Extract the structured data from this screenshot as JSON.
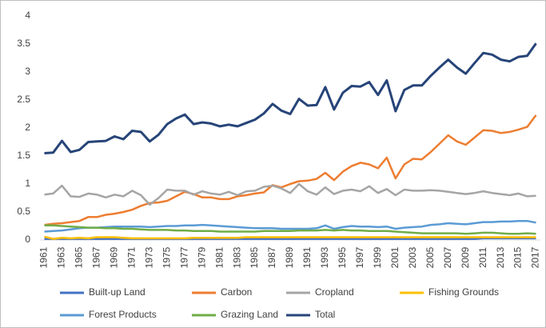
{
  "chart_data": {
    "type": "line",
    "categories": [
      "1961",
      null,
      "1963",
      null,
      "1965",
      null,
      "1967",
      null,
      "1969",
      null,
      "1971",
      null,
      "1973",
      null,
      "1975",
      null,
      "1977",
      null,
      "1979",
      null,
      "1981",
      null,
      "1983",
      null,
      "1985",
      null,
      "1987",
      null,
      "1989",
      null,
      "1991",
      null,
      "1993",
      null,
      "1995",
      null,
      "1997",
      null,
      "1999",
      null,
      "2001",
      null,
      "2003",
      null,
      "2005",
      null,
      "2007",
      null,
      "2009",
      null,
      "2011",
      null,
      "2013",
      null,
      "2015",
      null,
      "2017"
    ],
    "ylim": [
      0,
      4
    ],
    "yticks": [
      0,
      0.5,
      1,
      1.5,
      2,
      2.5,
      3,
      3.5,
      4
    ],
    "grid": false,
    "legend": "bottom",
    "series": [
      {
        "name": "Built-up Land",
        "color": "#4472c4",
        "values": [
          0.02,
          0.02,
          0.02,
          0.02,
          0.02,
          0.02,
          0.02,
          0.02,
          0.02,
          0.02,
          0.02,
          0.02,
          0.02,
          0.02,
          0.02,
          0.02,
          0.02,
          0.02,
          0.02,
          0.02,
          0.02,
          0.02,
          0.02,
          0.02,
          0.02,
          0.02,
          0.02,
          0.02,
          0.02,
          0.02,
          0.02,
          0.02,
          0.02,
          0.02,
          0.02,
          0.02,
          0.02,
          0.02,
          0.02,
          0.02,
          0.02,
          0.02,
          0.02,
          0.02,
          0.02,
          0.02,
          0.02,
          0.02,
          0.02,
          0.02,
          0.03,
          0.03,
          0.03,
          0.03,
          0.03,
          0.03,
          0.03
        ]
      },
      {
        "name": "Carbon",
        "color": "#ed7d31",
        "values": [
          0.27,
          0.29,
          0.3,
          0.32,
          0.34,
          0.41,
          0.41,
          0.45,
          0.47,
          0.5,
          0.54,
          0.61,
          0.66,
          0.67,
          0.7,
          0.78,
          0.86,
          0.82,
          0.76,
          0.76,
          0.73,
          0.73,
          0.78,
          0.8,
          0.83,
          0.85,
          0.98,
          0.94,
          1.0,
          1.05,
          1.06,
          1.09,
          1.2,
          1.07,
          1.22,
          1.32,
          1.38,
          1.35,
          1.28,
          1.47,
          1.1,
          1.35,
          1.45,
          1.44,
          1.57,
          1.72,
          1.87,
          1.76,
          1.7,
          1.83,
          1.96,
          1.95,
          1.91,
          1.93,
          1.97,
          2.02,
          2.23
        ]
      },
      {
        "name": "Cropland",
        "color": "#a5a5a5",
        "values": [
          0.81,
          0.83,
          0.97,
          0.78,
          0.77,
          0.83,
          0.81,
          0.76,
          0.81,
          0.78,
          0.88,
          0.8,
          0.63,
          0.75,
          0.9,
          0.88,
          0.88,
          0.81,
          0.87,
          0.83,
          0.81,
          0.86,
          0.8,
          0.87,
          0.88,
          0.95,
          0.97,
          0.92,
          0.84,
          1.0,
          0.87,
          0.81,
          0.94,
          0.82,
          0.88,
          0.9,
          0.87,
          0.96,
          0.84,
          0.91,
          0.8,
          0.9,
          0.88,
          0.88,
          0.89,
          0.88,
          0.86,
          0.84,
          0.82,
          0.84,
          0.87,
          0.84,
          0.82,
          0.8,
          0.83,
          0.78,
          0.79
        ]
      },
      {
        "name": "Fishing Grounds",
        "color": "#ffc000",
        "values": [
          0.06,
          0.02,
          0.04,
          0.03,
          0.04,
          0.03,
          0.05,
          0.05,
          0.05,
          0.04,
          0.03,
          0.03,
          0.03,
          0.03,
          0.03,
          0.03,
          0.03,
          0.04,
          0.04,
          0.04,
          0.04,
          0.04,
          0.04,
          0.05,
          0.05,
          0.05,
          0.05,
          0.05,
          0.05,
          0.05,
          0.05,
          0.05,
          0.05,
          0.05,
          0.05,
          0.05,
          0.05,
          0.05,
          0.05,
          0.05,
          0.05,
          0.05,
          0.05,
          0.05,
          0.05,
          0.05,
          0.05,
          0.05,
          0.05,
          0.05,
          0.05,
          0.05,
          0.05,
          0.05,
          0.05,
          0.05,
          0.05
        ]
      },
      {
        "name": "Forest Products",
        "color": "#5b9bd5",
        "values": [
          0.15,
          0.16,
          0.17,
          0.19,
          0.21,
          0.22,
          0.22,
          0.23,
          0.24,
          0.24,
          0.24,
          0.24,
          0.23,
          0.24,
          0.25,
          0.25,
          0.26,
          0.26,
          0.27,
          0.26,
          0.25,
          0.24,
          0.23,
          0.22,
          0.21,
          0.21,
          0.21,
          0.2,
          0.2,
          0.2,
          0.2,
          0.21,
          0.26,
          0.2,
          0.23,
          0.25,
          0.24,
          0.24,
          0.23,
          0.24,
          0.2,
          0.22,
          0.23,
          0.24,
          0.27,
          0.28,
          0.3,
          0.29,
          0.28,
          0.3,
          0.32,
          0.32,
          0.33,
          0.33,
          0.34,
          0.34,
          0.31
        ]
      },
      {
        "name": "Grazing Land",
        "color": "#70ad47",
        "values": [
          0.26,
          0.26,
          0.25,
          0.24,
          0.23,
          0.22,
          0.22,
          0.21,
          0.21,
          0.2,
          0.2,
          0.19,
          0.18,
          0.18,
          0.18,
          0.17,
          0.17,
          0.16,
          0.16,
          0.16,
          0.15,
          0.15,
          0.15,
          0.15,
          0.15,
          0.16,
          0.16,
          0.16,
          0.16,
          0.17,
          0.17,
          0.17,
          0.18,
          0.17,
          0.18,
          0.17,
          0.17,
          0.16,
          0.16,
          0.16,
          0.15,
          0.14,
          0.13,
          0.12,
          0.12,
          0.12,
          0.12,
          0.12,
          0.11,
          0.12,
          0.13,
          0.13,
          0.12,
          0.11,
          0.11,
          0.12,
          0.11
        ]
      },
      {
        "name": "Total",
        "color": "#264478",
        "values": [
          1.55,
          1.56,
          1.77,
          1.57,
          1.61,
          1.75,
          1.76,
          1.77,
          1.85,
          1.8,
          1.95,
          1.93,
          1.76,
          1.88,
          2.07,
          2.17,
          2.24,
          2.07,
          2.1,
          2.08,
          2.03,
          2.06,
          2.03,
          2.09,
          2.15,
          2.26,
          2.43,
          2.31,
          2.25,
          2.52,
          2.4,
          2.41,
          2.73,
          2.33,
          2.63,
          2.75,
          2.74,
          2.82,
          2.59,
          2.85,
          2.3,
          2.68,
          2.76,
          2.76,
          2.93,
          3.08,
          3.22,
          3.08,
          2.97,
          3.16,
          3.34,
          3.31,
          3.22,
          3.19,
          3.27,
          3.29,
          3.51
        ]
      }
    ]
  }
}
